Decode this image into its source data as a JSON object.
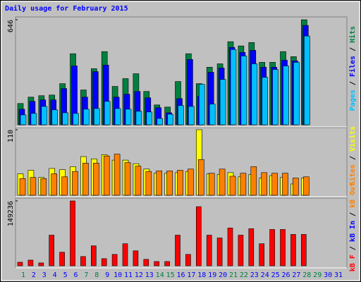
{
  "chart_data": [
    {
      "type": "bar",
      "title": "Daily usage for February 2015",
      "ylim": [
        0,
        646
      ],
      "yticks": [
        646
      ],
      "series": [
        {
          "name": "Hits",
          "color": "#008040",
          "values": [
            131,
            170,
            179,
            183,
            253,
            437,
            214,
            345,
            450,
            236,
            284,
            314,
            205,
            122,
            109,
            266,
            437,
            253,
            354,
            375,
            511,
            485,
            506,
            384,
            384,
            450,
            419,
            646,
            null,
            null,
            null
          ]
        },
        {
          "name": "Files",
          "color": "#0000ff",
          "values": [
            96,
            144,
            153,
            153,
            223,
            362,
            170,
            327,
            367,
            170,
            188,
            205,
            166,
            105,
            74,
            161,
            402,
            175,
            323,
            349,
            476,
            445,
            458,
            354,
            354,
            397,
            393,
            611,
            null,
            null,
            null
          ]
        },
        {
          "name": "Pages",
          "color": "#00c0ff",
          "values": [
            61,
            70,
            113,
            92,
            74,
            70,
            96,
            100,
            144,
            100,
            96,
            83,
            79,
            39,
            65,
            118,
            113,
            249,
            127,
            279,
            463,
            423,
            375,
            292,
            340,
            362,
            384,
            546,
            null,
            null,
            null
          ]
        }
      ]
    },
    {
      "type": "bar",
      "ylim": [
        0,
        110
      ],
      "yticks": [
        110
      ],
      "series": [
        {
          "name": "Visits",
          "color": "#ffff00",
          "values": [
            36,
            42,
            30,
            45,
            43,
            48,
            65,
            61,
            68,
            59,
            59,
            53,
            44,
            37,
            37,
            38,
            40,
            110,
            36,
            35,
            38,
            31,
            35,
            29,
            33,
            30,
            19,
            29,
            null,
            null,
            null
          ]
        },
        {
          "name": "Sites",
          "color": "#ff8000",
          "values": [
            28,
            30,
            28,
            36,
            31,
            40,
            54,
            54,
            66,
            69,
            55,
            49,
            40,
            41,
            41,
            42,
            44,
            60,
            37,
            44,
            32,
            37,
            48,
            38,
            37,
            37,
            29,
            31,
            null,
            null,
            null
          ]
        }
      ]
    },
    {
      "type": "bar",
      "ylim": [
        0,
        149236
      ],
      "yticks": [
        149236
      ],
      "categories": [
        "1",
        "2",
        "3",
        "4",
        "5",
        "6",
        "7",
        "8",
        "9",
        "10",
        "11",
        "12",
        "13",
        "14",
        "15",
        "16",
        "17",
        "18",
        "19",
        "20",
        "21",
        "22",
        "23",
        "24",
        "25",
        "26",
        "27",
        "28",
        "29",
        "30",
        "31"
      ],
      "category_colors": [
        "#008040",
        "#0000ff",
        "#0000ff",
        "#0000ff",
        "#0000ff",
        "#0000ff",
        "#008040",
        "#008040",
        "#0000ff",
        "#0000ff",
        "#0000ff",
        "#0000ff",
        "#0000ff",
        "#008040",
        "#008040",
        "#0000ff",
        "#0000ff",
        "#0000ff",
        "#0000ff",
        "#0000ff",
        "#008040",
        "#008040",
        "#0000ff",
        "#0000ff",
        "#0000ff",
        "#0000ff",
        "#0000ff",
        "#008040",
        "#008040",
        "#0000ff",
        "#0000ff"
      ],
      "series": [
        {
          "name": "kB F",
          "color": "#ff0000",
          "values": [
            8200,
            13100,
            6600,
            70500,
            31200,
            149236,
            21300,
            45900,
            16400,
            26200,
            50800,
            34400,
            14800,
            9800,
            9800,
            70500,
            26200,
            136100,
            70500,
            64000,
            86900,
            70500,
            85300,
            50800,
            83600,
            83600,
            72200,
            72200,
            null,
            null,
            null
          ]
        },
        {
          "name": "kB In",
          "color": "#0000ff",
          "values": [
            0,
            0,
            0,
            0,
            0,
            0,
            0,
            0,
            0,
            0,
            0,
            0,
            0,
            0,
            0,
            0,
            0,
            0,
            0,
            0,
            0,
            0,
            0,
            0,
            0,
            0,
            0,
            0,
            null,
            null,
            null
          ]
        },
        {
          "name": "kB Out",
          "color": "#ff8000",
          "values": [
            0,
            0,
            0,
            0,
            0,
            0,
            0,
            0,
            0,
            0,
            0,
            0,
            0,
            0,
            0,
            0,
            0,
            0,
            0,
            0,
            0,
            0,
            0,
            0,
            0,
            0,
            0,
            0,
            null,
            null,
            null
          ]
        }
      ]
    }
  ]
}
